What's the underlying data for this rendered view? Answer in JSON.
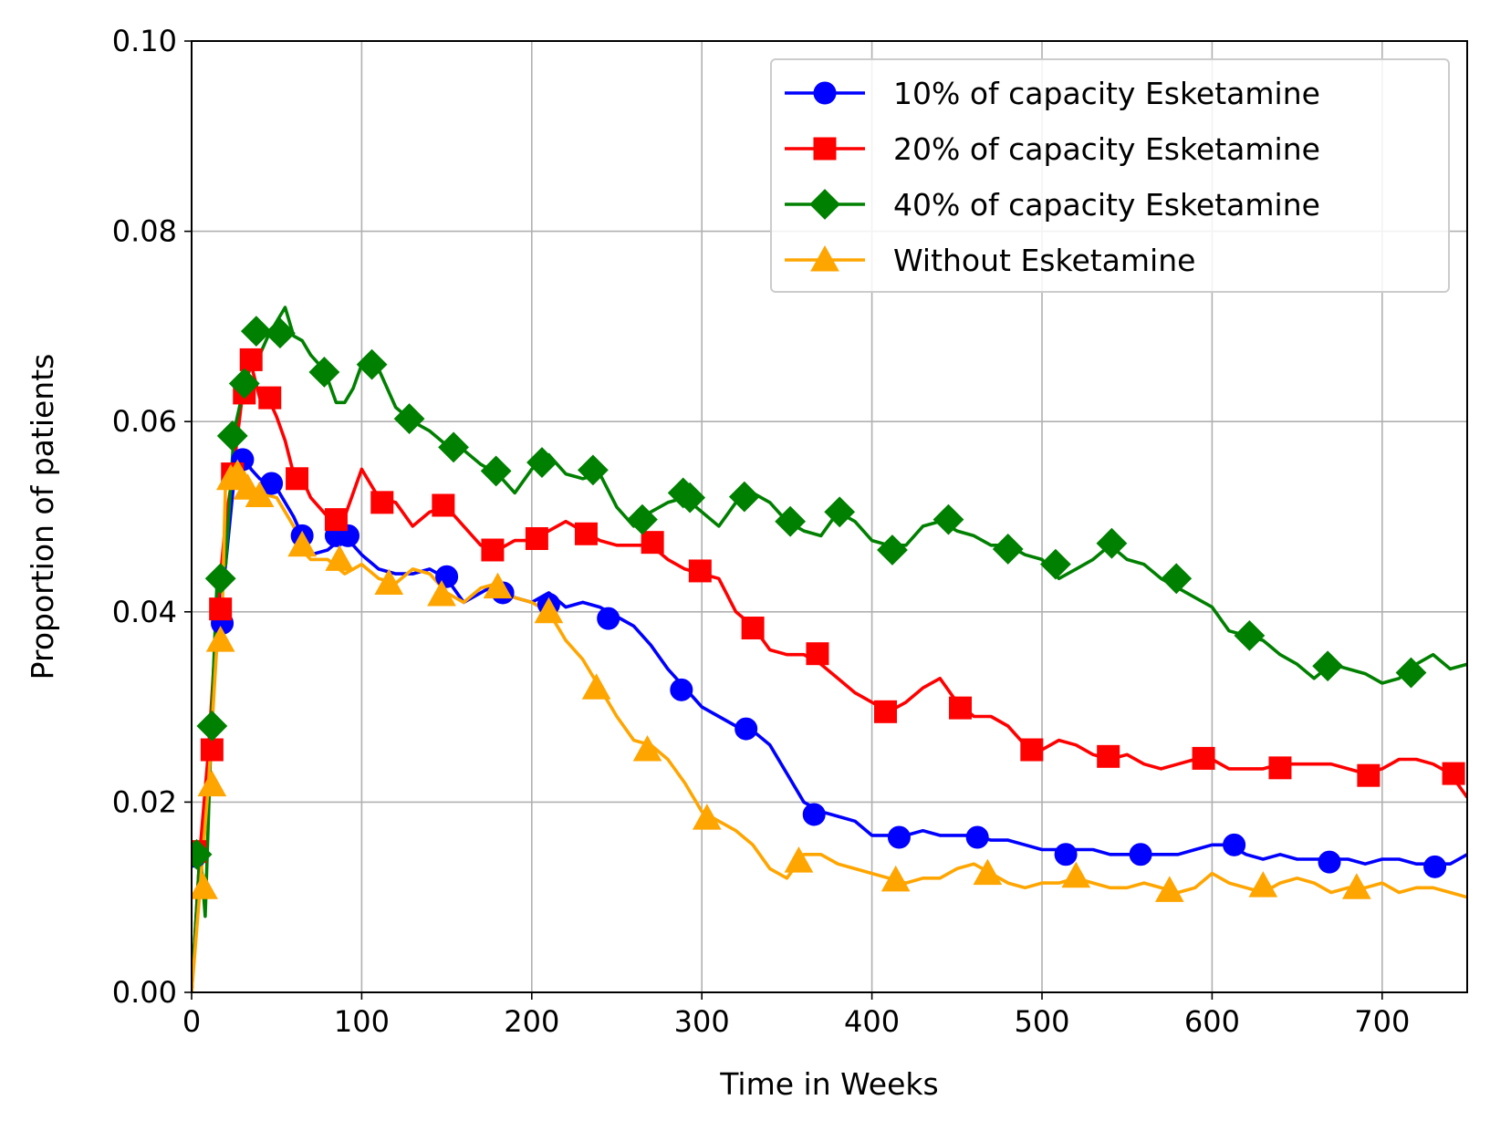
{
  "chart_data": {
    "type": "line",
    "xlabel": "Time in Weeks",
    "ylabel": "Proportion of patients",
    "xlim": [
      0,
      750
    ],
    "ylim": [
      0,
      0.1
    ],
    "xticks": [
      "0",
      "100",
      "200",
      "300",
      "400",
      "500",
      "600",
      "700"
    ],
    "yticks": [
      "0.00",
      "0.02",
      "0.04",
      "0.06",
      "0.08",
      "0.10"
    ],
    "grid": true,
    "legend_position": "top-right",
    "series": [
      {
        "name": "10% of capacity Esketamine",
        "color": "#0000ff",
        "marker": "circle",
        "x": [
          0,
          5,
          10,
          15,
          20,
          25,
          30,
          35,
          40,
          50,
          60,
          65,
          70,
          80,
          90,
          100,
          110,
          120,
          130,
          140,
          150,
          160,
          170,
          180,
          190,
          200,
          210,
          220,
          230,
          240,
          250,
          260,
          270,
          280,
          290,
          300,
          310,
          320,
          330,
          340,
          350,
          360,
          370,
          380,
          390,
          400,
          410,
          420,
          430,
          440,
          450,
          460,
          470,
          480,
          490,
          500,
          510,
          520,
          530,
          540,
          550,
          560,
          570,
          580,
          590,
          600,
          610,
          620,
          630,
          640,
          650,
          660,
          670,
          680,
          690,
          700,
          710,
          720,
          730,
          740,
          750
        ],
        "y": [
          0.0,
          0.0145,
          0.025,
          0.0385,
          0.045,
          0.054,
          0.0565,
          0.055,
          0.054,
          0.053,
          0.05,
          0.048,
          0.046,
          0.0465,
          0.048,
          0.046,
          0.0445,
          0.044,
          0.044,
          0.0445,
          0.0435,
          0.041,
          0.042,
          0.043,
          0.0415,
          0.041,
          0.042,
          0.0405,
          0.041,
          0.0405,
          0.0395,
          0.0385,
          0.0365,
          0.034,
          0.032,
          0.03,
          0.029,
          0.028,
          0.0275,
          0.026,
          0.023,
          0.02,
          0.019,
          0.0185,
          0.018,
          0.0165,
          0.0165,
          0.0165,
          0.017,
          0.0165,
          0.0165,
          0.0165,
          0.016,
          0.016,
          0.0155,
          0.015,
          0.015,
          0.015,
          0.015,
          0.0145,
          0.0145,
          0.0145,
          0.0145,
          0.0145,
          0.015,
          0.0155,
          0.0155,
          0.0145,
          0.014,
          0.0145,
          0.014,
          0.014,
          0.014,
          0.014,
          0.0135,
          0.014,
          0.014,
          0.0135,
          0.0135,
          0.0135,
          0.0145
        ],
        "markers_x": [
          2,
          18,
          30,
          47,
          65,
          85,
          92,
          150,
          183,
          210,
          245,
          288,
          326,
          366,
          416,
          462,
          514,
          558,
          613,
          669,
          731
        ],
        "markers_y": [
          0.0143,
          0.0388,
          0.056,
          0.0535,
          0.048,
          0.048,
          0.048,
          0.0437,
          0.042,
          0.0408,
          0.0393,
          0.0318,
          0.0277,
          0.0187,
          0.0163,
          0.0163,
          0.0145,
          0.0145,
          0.0155,
          0.0137,
          0.0132
        ]
      },
      {
        "name": "20% of capacity Esketamine",
        "color": "#ff0000",
        "marker": "square",
        "x": [
          0,
          5,
          10,
          15,
          20,
          25,
          30,
          35,
          40,
          45,
          50,
          55,
          60,
          65,
          70,
          80,
          90,
          100,
          110,
          120,
          130,
          140,
          150,
          160,
          170,
          180,
          190,
          200,
          210,
          220,
          230,
          240,
          250,
          260,
          270,
          280,
          290,
          300,
          310,
          320,
          330,
          340,
          350,
          360,
          370,
          380,
          390,
          400,
          410,
          420,
          430,
          440,
          450,
          460,
          470,
          480,
          490,
          500,
          510,
          520,
          530,
          540,
          550,
          560,
          570,
          580,
          590,
          600,
          610,
          620,
          630,
          640,
          650,
          660,
          670,
          680,
          690,
          700,
          710,
          720,
          730,
          740,
          750
        ],
        "y": [
          0.0,
          0.015,
          0.0255,
          0.04,
          0.0495,
          0.0555,
          0.063,
          0.066,
          0.0625,
          0.0625,
          0.0605,
          0.058,
          0.0545,
          0.054,
          0.052,
          0.05,
          0.05,
          0.055,
          0.052,
          0.0515,
          0.049,
          0.0505,
          0.051,
          0.049,
          0.047,
          0.0465,
          0.0475,
          0.0475,
          0.0485,
          0.0495,
          0.0485,
          0.0475,
          0.047,
          0.047,
          0.047,
          0.0455,
          0.0445,
          0.044,
          0.0435,
          0.04,
          0.0385,
          0.036,
          0.0355,
          0.0355,
          0.0345,
          0.033,
          0.0315,
          0.0305,
          0.0295,
          0.0305,
          0.032,
          0.033,
          0.0305,
          0.029,
          0.029,
          0.028,
          0.026,
          0.0255,
          0.0265,
          0.026,
          0.025,
          0.0245,
          0.025,
          0.024,
          0.0235,
          0.024,
          0.0245,
          0.0245,
          0.0235,
          0.0235,
          0.0235,
          0.024,
          0.024,
          0.024,
          0.024,
          0.0235,
          0.023,
          0.0235,
          0.0245,
          0.0245,
          0.024,
          0.023,
          0.0205
        ],
        "markers_x": [
          2,
          12,
          17,
          24,
          31,
          35,
          46,
          62,
          85,
          112,
          148,
          177,
          203,
          232,
          271,
          299,
          330,
          368,
          408,
          452,
          494,
          539,
          595,
          640,
          692,
          742
        ],
        "markers_y": [
          0.0148,
          0.0255,
          0.0403,
          0.0545,
          0.063,
          0.0665,
          0.0625,
          0.054,
          0.0497,
          0.0515,
          0.0512,
          0.0465,
          0.0477,
          0.0482,
          0.0473,
          0.0443,
          0.0383,
          0.0356,
          0.0295,
          0.0299,
          0.0255,
          0.0248,
          0.0246,
          0.0236,
          0.0228,
          0.023
        ]
      },
      {
        "name": "40% of capacity Esketamine",
        "color": "#008000",
        "marker": "diamond",
        "x": [
          0,
          5,
          8,
          12,
          15,
          20,
          25,
          30,
          35,
          40,
          45,
          50,
          55,
          60,
          65,
          70,
          75,
          80,
          85,
          90,
          95,
          100,
          105,
          110,
          115,
          120,
          130,
          140,
          150,
          160,
          170,
          180,
          190,
          200,
          210,
          220,
          230,
          240,
          250,
          260,
          270,
          280,
          290,
          300,
          310,
          320,
          330,
          340,
          350,
          360,
          370,
          380,
          390,
          400,
          410,
          420,
          430,
          440,
          450,
          460,
          470,
          480,
          490,
          500,
          510,
          520,
          530,
          540,
          550,
          560,
          570,
          580,
          590,
          600,
          610,
          620,
          630,
          640,
          650,
          660,
          670,
          680,
          690,
          700,
          710,
          720,
          730,
          740,
          750
        ],
        "y": [
          0.0,
          0.015,
          0.008,
          0.03,
          0.0435,
          0.045,
          0.059,
          0.063,
          0.0665,
          0.067,
          0.069,
          0.0705,
          0.072,
          0.069,
          0.0685,
          0.067,
          0.066,
          0.0645,
          0.062,
          0.062,
          0.0635,
          0.066,
          0.0655,
          0.0655,
          0.0635,
          0.0615,
          0.06,
          0.059,
          0.0575,
          0.057,
          0.0555,
          0.0545,
          0.0525,
          0.055,
          0.0565,
          0.0545,
          0.054,
          0.0545,
          0.051,
          0.049,
          0.0505,
          0.0515,
          0.052,
          0.0505,
          0.049,
          0.0515,
          0.0525,
          0.0515,
          0.0495,
          0.0485,
          0.048,
          0.0505,
          0.0495,
          0.0475,
          0.047,
          0.047,
          0.049,
          0.0495,
          0.0485,
          0.048,
          0.047,
          0.047,
          0.046,
          0.0455,
          0.0435,
          0.0445,
          0.0455,
          0.047,
          0.0455,
          0.045,
          0.0435,
          0.0425,
          0.0415,
          0.0405,
          0.038,
          0.0375,
          0.037,
          0.0355,
          0.0345,
          0.033,
          0.0345,
          0.034,
          0.0335,
          0.0325,
          0.033,
          0.0345,
          0.0355,
          0.034,
          0.0345
        ],
        "markers_x": [
          3,
          12,
          17,
          24,
          31,
          38,
          52,
          78,
          106,
          128,
          154,
          179,
          206,
          236,
          265,
          289,
          293,
          325,
          352,
          381,
          412,
          445,
          480,
          508,
          541,
          579,
          622,
          668,
          717
        ],
        "markers_y": [
          0.0145,
          0.028,
          0.0435,
          0.0585,
          0.064,
          0.0695,
          0.0693,
          0.0652,
          0.066,
          0.0603,
          0.0573,
          0.0548,
          0.0557,
          0.0549,
          0.0497,
          0.0525,
          0.052,
          0.0521,
          0.0495,
          0.0505,
          0.0465,
          0.0497,
          0.0466,
          0.045,
          0.0472,
          0.0435,
          0.0375,
          0.0343,
          0.0336
        ]
      },
      {
        "name": "Without Esketamine",
        "color": "#ffa500",
        "marker": "triangle",
        "x": [
          0,
          5,
          10,
          15,
          18,
          20,
          25,
          30,
          35,
          40,
          50,
          60,
          65,
          70,
          80,
          90,
          100,
          110,
          120,
          130,
          140,
          150,
          160,
          170,
          180,
          190,
          200,
          210,
          220,
          230,
          240,
          250,
          260,
          270,
          280,
          290,
          300,
          310,
          320,
          330,
          340,
          350,
          360,
          370,
          380,
          390,
          400,
          410,
          420,
          430,
          440,
          450,
          460,
          470,
          480,
          490,
          500,
          510,
          520,
          530,
          540,
          550,
          560,
          570,
          580,
          590,
          600,
          610,
          620,
          630,
          640,
          650,
          660,
          670,
          680,
          690,
          700,
          710,
          720,
          730,
          740,
          750
        ],
        "y": [
          0.0,
          0.011,
          0.022,
          0.037,
          0.04,
          0.054,
          0.0545,
          0.055,
          0.053,
          0.0525,
          0.052,
          0.049,
          0.0465,
          0.0455,
          0.0455,
          0.044,
          0.045,
          0.0435,
          0.043,
          0.0445,
          0.044,
          0.042,
          0.041,
          0.0425,
          0.043,
          0.0415,
          0.041,
          0.04,
          0.037,
          0.035,
          0.032,
          0.029,
          0.0265,
          0.026,
          0.0245,
          0.022,
          0.019,
          0.018,
          0.017,
          0.0155,
          0.013,
          0.012,
          0.0145,
          0.0145,
          0.0135,
          0.013,
          0.0125,
          0.012,
          0.0115,
          0.012,
          0.012,
          0.013,
          0.0135,
          0.0125,
          0.0115,
          0.011,
          0.0115,
          0.0115,
          0.012,
          0.0115,
          0.011,
          0.011,
          0.0115,
          0.011,
          0.0105,
          0.011,
          0.0125,
          0.0115,
          0.011,
          0.0105,
          0.0115,
          0.012,
          0.0115,
          0.0105,
          0.011,
          0.011,
          0.0115,
          0.0105,
          0.011,
          0.011,
          0.0105,
          0.01
        ],
        "markers_x": [
          7,
          12,
          17,
          23,
          27,
          33,
          40,
          65,
          87,
          116,
          147,
          180,
          210,
          238,
          268,
          303,
          357,
          414,
          468,
          520,
          575,
          630,
          685
        ],
        "markers_y": [
          0.011,
          0.0218,
          0.037,
          0.054,
          0.0545,
          0.053,
          0.0522,
          0.047,
          0.0455,
          0.043,
          0.0418,
          0.0426,
          0.04,
          0.032,
          0.0255,
          0.0183,
          0.0138,
          0.0118,
          0.0125,
          0.0122,
          0.0107,
          0.0112,
          0.011
        ]
      }
    ]
  }
}
